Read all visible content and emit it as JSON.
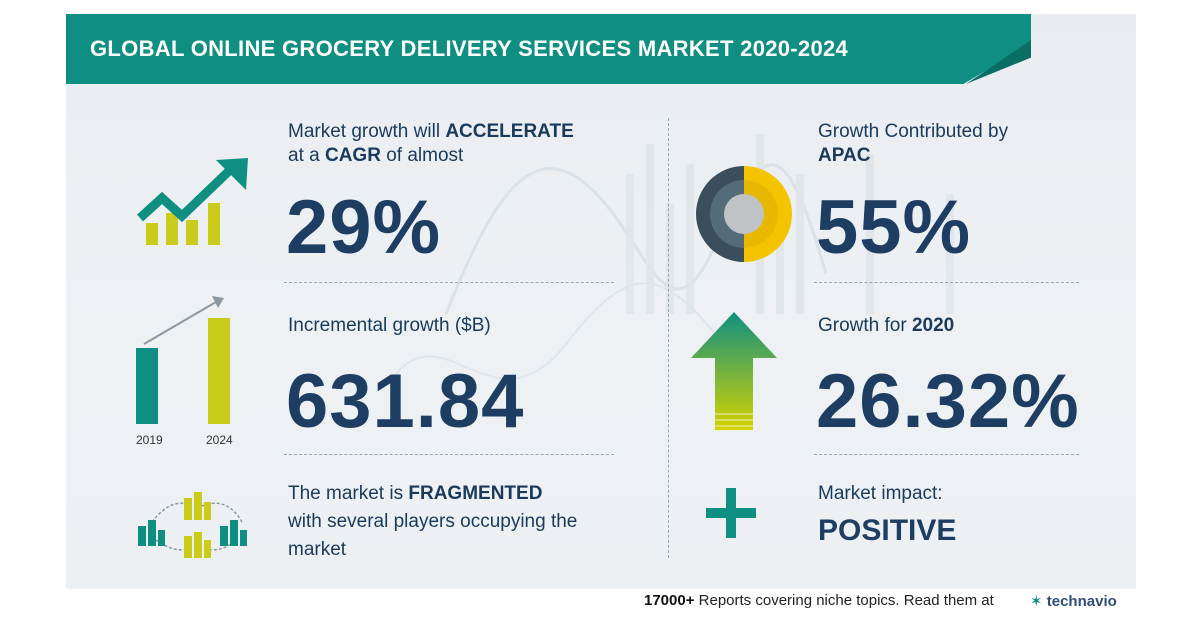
{
  "header": {
    "title": "GLOBAL ONLINE GROCERY DELIVERY SERVICES MARKET 2020-2024"
  },
  "left": {
    "growth": {
      "line1_prefix": "Market growth will ",
      "line1_bold": "ACCELERATE",
      "line2_prefix": "at a ",
      "line2_bold": "CAGR",
      "line2_suffix": " of almost",
      "value": "29%"
    },
    "incremental": {
      "label": "Incremental growth ($B)",
      "value": "631.84",
      "year_start": "2019",
      "year_end": "2024"
    },
    "fragmented": {
      "line1_prefix": "The market is ",
      "line1_bold": "FRAGMENTED",
      "line2": "with several players occupying the",
      "line3": "market"
    }
  },
  "right": {
    "region": {
      "label": "Growth Contributed by",
      "region": "APAC",
      "value": "55%"
    },
    "year_growth": {
      "label_prefix": "Growth for ",
      "year": "2020",
      "value": "26.32%"
    },
    "impact": {
      "label": "Market impact:",
      "value": "POSITIVE"
    }
  },
  "footer": {
    "count": "17000+",
    "text": "Reports covering niche topics. Read them at",
    "brand": "technavio"
  },
  "colors": {
    "teal": "#0e8f82",
    "navy": "#1d3d63",
    "yellow": "#d4d400",
    "donut_dark": "#3a4e5c",
    "donut_yellow": "#f5c400"
  },
  "icons": {
    "growth": "trend-up-bars-icon",
    "incremental": "bar-comparison-icon",
    "fragmented": "buildings-network-icon",
    "region": "donut-chart-icon",
    "year_growth": "up-arrow-icon",
    "impact": "plus-icon"
  }
}
